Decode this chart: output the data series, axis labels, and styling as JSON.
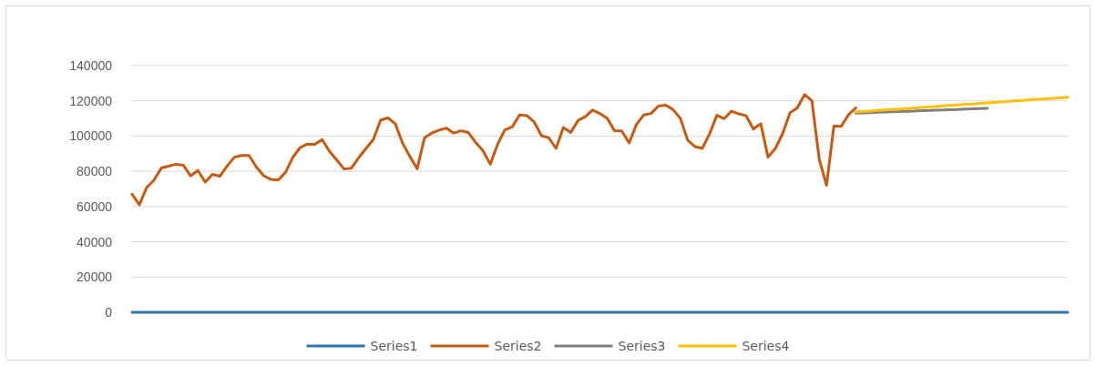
{
  "chart_data": {
    "type": "line",
    "categories": [
      null,
      null,
      null,
      null,
      null,
      null,
      null,
      null,
      null,
      null,
      null,
      null,
      null,
      null,
      null,
      null,
      null,
      null,
      null,
      null,
      null,
      null,
      null,
      null,
      null,
      null,
      null,
      null,
      null,
      null,
      null,
      null,
      null,
      null,
      null,
      null,
      null,
      null,
      null,
      null,
      null,
      null,
      null,
      null,
      null,
      null,
      null,
      null,
      null,
      null,
      null,
      null,
      null,
      null,
      null,
      null,
      null,
      null,
      null,
      null,
      null,
      null,
      null,
      null,
      null,
      null,
      null,
      null,
      null,
      null,
      null,
      null,
      null,
      null,
      null,
      null,
      null,
      null,
      null,
      null,
      null,
      null,
      null,
      null,
      null,
      null,
      null,
      null,
      null,
      null,
      null,
      null,
      null,
      null,
      null,
      null,
      null,
      null,
      null,
      null,
      null,
      null,
      null,
      null,
      null,
      null,
      null,
      null,
      null,
      null,
      null,
      null,
      null,
      null,
      null,
      null,
      null,
      null,
      null,
      null,
      null,
      null,
      null,
      null,
      null,
      null,
      null,
      null,
      null
    ],
    "ylim": [
      0,
      140000
    ],
    "yticks": [
      0,
      20000,
      40000,
      60000,
      80000,
      100000,
      120000,
      140000
    ],
    "grid": "y",
    "legend": "bottom",
    "tick_labels": "y",
    "marker": "none",
    "line_style": "solid",
    "series": [
      {
        "name": "Series1",
        "color": "#2e75b6",
        "values": [
          0,
          0,
          0,
          0,
          0,
          0,
          0,
          0,
          0,
          0,
          0,
          0,
          0,
          0,
          0,
          0,
          0,
          0,
          0,
          0,
          0,
          0,
          0,
          0,
          0,
          0,
          0,
          0,
          0,
          0,
          0,
          0,
          0,
          0,
          0,
          0,
          0,
          0,
          0,
          0,
          0,
          0,
          0,
          0,
          0,
          0,
          0,
          0,
          0,
          0,
          0,
          0,
          0,
          0,
          0,
          0,
          0,
          0,
          0,
          0,
          0,
          0,
          0,
          0,
          0,
          0,
          0,
          0,
          0,
          0,
          0,
          0,
          0,
          0,
          0,
          0,
          0,
          0,
          0,
          0,
          0,
          0,
          0,
          0,
          0,
          0,
          0,
          0,
          0,
          0,
          0,
          0,
          0,
          0,
          0,
          0,
          0,
          0,
          0,
          0,
          0,
          0,
          0,
          0,
          0,
          0,
          0,
          0,
          0,
          0,
          0,
          0,
          0,
          0,
          0,
          0,
          0,
          0,
          0,
          0,
          0,
          0,
          0,
          0,
          0,
          0,
          0,
          0,
          0
        ]
      },
      {
        "name": "Series2",
        "color": "#c55a11",
        "values": [
          67000,
          61000,
          70800,
          75000,
          81900,
          82900,
          84000,
          83500,
          77400,
          80500,
          73900,
          78300,
          77200,
          83000,
          88000,
          89000,
          89000,
          82400,
          77500,
          75400,
          75000,
          79500,
          88000,
          93500,
          95500,
          95300,
          98000,
          91300,
          86400,
          81300,
          81800,
          87700,
          93000,
          98000,
          109000,
          110300,
          107000,
          96000,
          88400,
          81400,
          99000,
          101700,
          103400,
          104500,
          101700,
          103000,
          102000,
          96400,
          91700,
          84000,
          95300,
          103500,
          105200,
          112000,
          111600,
          108000,
          100200,
          99000,
          93000,
          104900,
          102000,
          108800,
          111000,
          114800,
          112700,
          110000,
          103000,
          102800,
          96100,
          106600,
          112000,
          112800,
          117000,
          117500,
          115000,
          110000,
          97700,
          94000,
          93000,
          101200,
          111800,
          109900,
          114100,
          112600,
          111500,
          104000,
          107000,
          88000,
          93000,
          101400,
          113200,
          116000,
          123500,
          120000,
          86900,
          72000,
          105600,
          105500,
          112000,
          116000,
          null,
          null,
          null,
          null,
          null,
          null,
          null,
          null,
          null,
          null,
          null,
          null,
          null,
          null,
          null,
          null,
          null,
          null,
          null,
          null,
          null,
          null,
          null,
          null,
          null,
          null,
          null,
          null,
          null
        ]
      },
      {
        "name": "Series3",
        "color": "#7f7f7f",
        "values": [
          null,
          null,
          null,
          null,
          null,
          null,
          null,
          null,
          null,
          null,
          null,
          null,
          null,
          null,
          null,
          null,
          null,
          null,
          null,
          null,
          null,
          null,
          null,
          null,
          null,
          null,
          null,
          null,
          null,
          null,
          null,
          null,
          null,
          null,
          null,
          null,
          null,
          null,
          null,
          null,
          null,
          null,
          null,
          null,
          null,
          null,
          null,
          null,
          null,
          null,
          null,
          null,
          null,
          null,
          null,
          null,
          null,
          null,
          null,
          null,
          null,
          null,
          null,
          null,
          null,
          null,
          null,
          null,
          null,
          null,
          null,
          null,
          null,
          null,
          null,
          null,
          null,
          null,
          null,
          null,
          null,
          null,
          null,
          null,
          null,
          null,
          null,
          null,
          null,
          null,
          null,
          null,
          null,
          null,
          null,
          null,
          null,
          null,
          null,
          113000,
          113200,
          113300,
          113500,
          113600,
          113800,
          113900,
          114100,
          114200,
          114400,
          114500,
          114700,
          114800,
          115000,
          115100,
          115300,
          115400,
          115600,
          115700,
          null,
          null,
          null,
          null,
          null,
          null,
          null,
          null,
          null,
          null,
          null
        ]
      },
      {
        "name": "Series4",
        "color": "#ffc000",
        "values": [
          null,
          null,
          null,
          null,
          null,
          null,
          null,
          null,
          null,
          null,
          null,
          null,
          null,
          null,
          null,
          null,
          null,
          null,
          null,
          null,
          null,
          null,
          null,
          null,
          null,
          null,
          null,
          null,
          null,
          null,
          null,
          null,
          null,
          null,
          null,
          null,
          null,
          null,
          null,
          null,
          null,
          null,
          null,
          null,
          null,
          null,
          null,
          null,
          null,
          null,
          null,
          null,
          null,
          null,
          null,
          null,
          null,
          null,
          null,
          null,
          null,
          null,
          null,
          null,
          null,
          null,
          null,
          null,
          null,
          null,
          null,
          null,
          null,
          null,
          null,
          null,
          null,
          null,
          null,
          null,
          null,
          null,
          null,
          null,
          null,
          null,
          null,
          null,
          null,
          null,
          null,
          null,
          null,
          null,
          null,
          null,
          null,
          null,
          null,
          113600,
          113900,
          114200,
          114500,
          114800,
          115100,
          115300,
          115600,
          115900,
          116200,
          116500,
          116800,
          117100,
          117400,
          117700,
          118000,
          118200,
          118500,
          118800,
          119100,
          119400,
          119700,
          120000,
          120300,
          120600,
          120900,
          121100,
          121400,
          121700,
          122000
        ]
      }
    ]
  }
}
